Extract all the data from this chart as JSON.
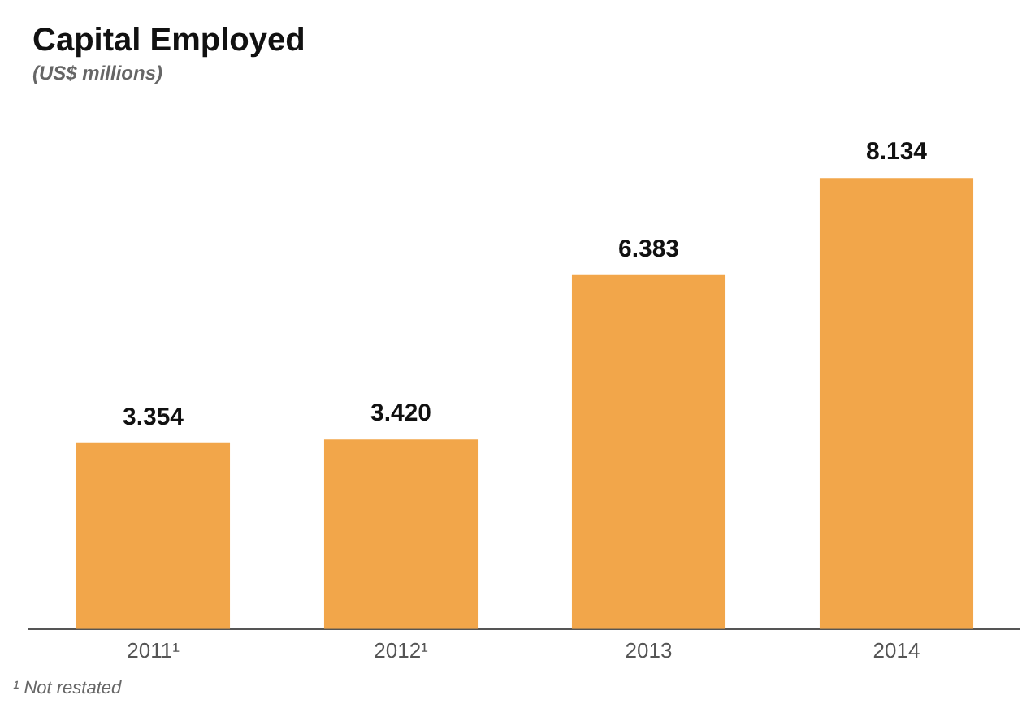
{
  "chart_data": {
    "type": "bar",
    "title": "Capital Employed",
    "subtitle": "(US$ millions)",
    "categories": [
      "2011¹",
      "2012¹",
      "2013",
      "2014"
    ],
    "values": [
      3.354,
      3.42,
      6.383,
      8.134
    ],
    "value_labels": [
      "3.354",
      "3.420",
      "6.383",
      "8.134"
    ],
    "color": "#f2a64a",
    "annotations": [
      "¹ Not restated"
    ]
  }
}
